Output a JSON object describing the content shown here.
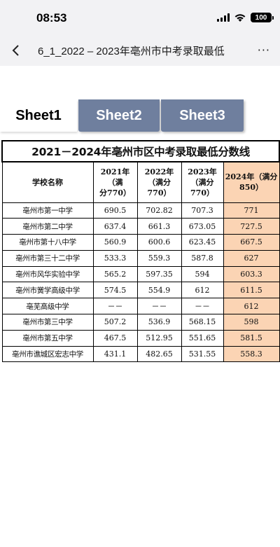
{
  "status_bar": {
    "time": "08:53",
    "battery": "100"
  },
  "nav": {
    "title": "6_1_2022 – 2023年亳州市中考录取最低",
    "back_icon": "chevron-left-icon",
    "more_label": "···"
  },
  "tabs": [
    {
      "label": "Sheet1",
      "active": true
    },
    {
      "label": "Sheet2",
      "active": false
    },
    {
      "label": "Sheet3",
      "active": false
    }
  ],
  "table": {
    "title": "2021－2024年亳州市区中考录取最低分数线",
    "headers": {
      "school": "学校名称",
      "y2021_line1": "2021年（满",
      "y2021_line2": "分770）",
      "y2022_line1": "2022年",
      "y2022_line2": "（满分",
      "y2022_line3": "770）",
      "y2023_line1": "2023年",
      "y2023_line2": "（满分",
      "y2023_line3": "770）",
      "y2024_line1": "2024年（满分",
      "y2024_line2": "850）"
    },
    "rows": [
      {
        "school": "亳州市第一中学",
        "y2021": "690.5",
        "y2022": "702.82",
        "y2023": "707.3",
        "y2024": "771"
      },
      {
        "school": "亳州市第二中学",
        "y2021": "637.4",
        "y2022": "661.3",
        "y2023": "673.05",
        "y2024": "727.5"
      },
      {
        "school": "亳州市第十八中学",
        "y2021": "560.9",
        "y2022": "600.6",
        "y2023": "623.45",
        "y2024": "667.5"
      },
      {
        "school": "亳州市第三十二中学",
        "y2021": "533.3",
        "y2022": "559.3",
        "y2023": "587.8",
        "y2024": "627"
      },
      {
        "school": "亳州市风华实验中学",
        "y2021": "565.2",
        "y2022": "597.35",
        "y2023": "594",
        "y2024": "603.3"
      },
      {
        "school": "亳州市黉学高级中学",
        "y2021": "574.5",
        "y2022": "554.9",
        "y2023": "612",
        "y2024": "611.5"
      },
      {
        "school": "亳芜高级中学",
        "y2021": "－－",
        "y2022": "－－",
        "y2023": "－－",
        "y2024": "612"
      },
      {
        "school": "亳州市第三中学",
        "y2021": "507.2",
        "y2022": "536.9",
        "y2023": "568.15",
        "y2024": "598"
      },
      {
        "school": "亳州市第五中学",
        "y2021": "467.5",
        "y2022": "512.95",
        "y2023": "551.65",
        "y2024": "581.5"
      },
      {
        "school": "亳州市谯城区宏志中学",
        "y2021": "431.1",
        "y2022": "482.65",
        "y2023": "531.55",
        "y2024": "558.3"
      }
    ]
  },
  "colors": {
    "highlight_column": "#fbd4b4",
    "inactive_tab": "#6f7f9e"
  }
}
